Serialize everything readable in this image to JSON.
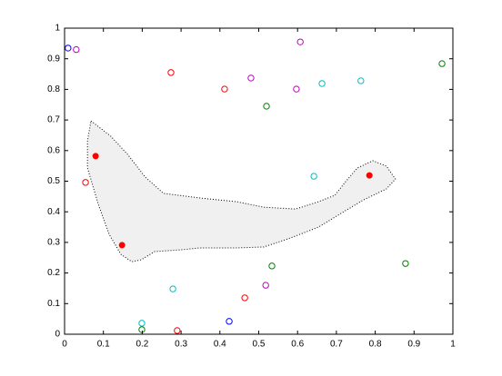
{
  "chart_data": {
    "type": "scatter",
    "xlim": [
      0,
      1
    ],
    "ylim": [
      0,
      1
    ],
    "xticks": [
      0,
      0.1,
      0.2,
      0.3,
      0.4,
      0.5,
      0.6,
      0.7,
      0.8,
      0.9,
      1
    ],
    "yticks": [
      0,
      0.1,
      0.2,
      0.3,
      0.4,
      0.5,
      0.6,
      0.7,
      0.8,
      0.9,
      1
    ],
    "grid": false,
    "region": {
      "color": "#f0f0f0",
      "x": [
        0.068,
        0.119,
        0.162,
        0.208,
        0.255,
        0.349,
        0.443,
        0.513,
        0.595,
        0.654,
        0.696,
        0.724,
        0.754,
        0.794,
        0.829,
        0.852,
        0.829,
        0.77,
        0.712,
        0.654,
        0.583,
        0.513,
        0.443,
        0.349,
        0.302,
        0.232,
        0.197,
        0.173,
        0.145,
        0.115,
        0.087,
        0.059,
        0.059
      ],
      "y": [
        0.697,
        0.647,
        0.588,
        0.513,
        0.46,
        0.445,
        0.433,
        0.415,
        0.409,
        0.433,
        0.454,
        0.499,
        0.543,
        0.567,
        0.549,
        0.507,
        0.475,
        0.439,
        0.395,
        0.35,
        0.315,
        0.285,
        0.282,
        0.282,
        0.276,
        0.27,
        0.243,
        0.237,
        0.261,
        0.326,
        0.424,
        0.543,
        0.632
      ]
    },
    "series": [
      {
        "color": "#0000ff",
        "marker": "open",
        "x": [
          0.009,
          0.424
        ],
        "y": [
          0.935,
          0.042
        ]
      },
      {
        "color": "#bf00bf",
        "marker": "open",
        "x": [
          0.03,
          0.607,
          0.48,
          0.597,
          0.518
        ],
        "y": [
          0.93,
          0.955,
          0.837,
          0.801,
          0.16
        ]
      },
      {
        "color": "#ff0000",
        "marker": "open",
        "x": [
          0.274,
          0.412,
          0.054,
          0.464,
          0.29
        ],
        "y": [
          0.855,
          0.801,
          0.496,
          0.119,
          0.012
        ]
      },
      {
        "color": "#00bfbf",
        "marker": "open",
        "x": [
          0.663,
          0.763,
          0.642,
          0.279,
          0.199
        ],
        "y": [
          0.819,
          0.828,
          0.516,
          0.148,
          0.036
        ]
      },
      {
        "color": "#008000",
        "marker": "open",
        "x": [
          0.972,
          0.52,
          0.534,
          0.878,
          0.199
        ],
        "y": [
          0.884,
          0.745,
          0.223,
          0.231,
          0.015
        ]
      },
      {
        "color": "#ff0000",
        "marker": "filled",
        "x": [
          0.08,
          0.148,
          0.785
        ],
        "y": [
          0.582,
          0.291,
          0.519
        ]
      }
    ]
  }
}
